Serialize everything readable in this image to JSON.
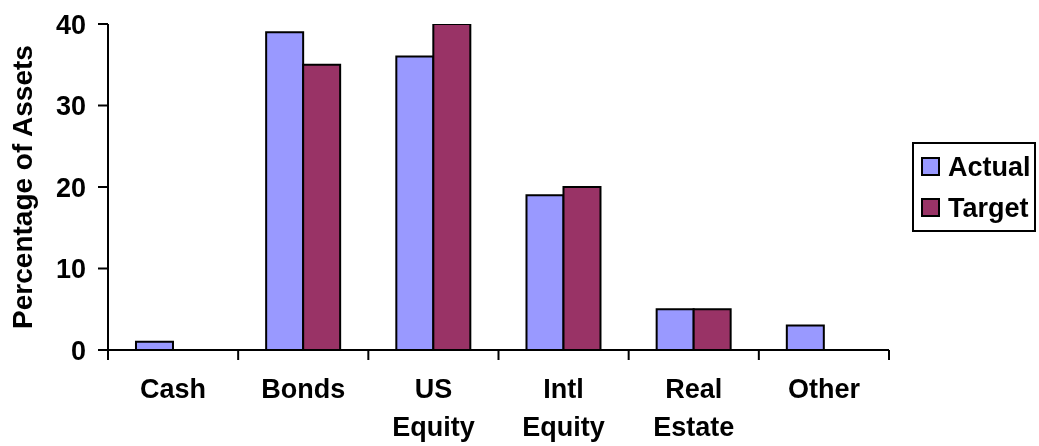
{
  "chart_data": {
    "type": "bar",
    "ylabel": "Percentage of Assets",
    "categories": [
      "Cash",
      "Bonds",
      "US Equity",
      "Intl Equity",
      "Real Estate",
      "Other"
    ],
    "series": [
      {
        "name": "Actual",
        "color": "#9999ff",
        "values": [
          1,
          39,
          36,
          19,
          5,
          3
        ]
      },
      {
        "name": "Target",
        "color": "#993366",
        "values": [
          null,
          35,
          40,
          20,
          5,
          null
        ]
      }
    ],
    "ylim": [
      0,
      40
    ],
    "yticks": [
      0,
      10,
      20,
      30,
      40
    ],
    "legend": "right"
  }
}
